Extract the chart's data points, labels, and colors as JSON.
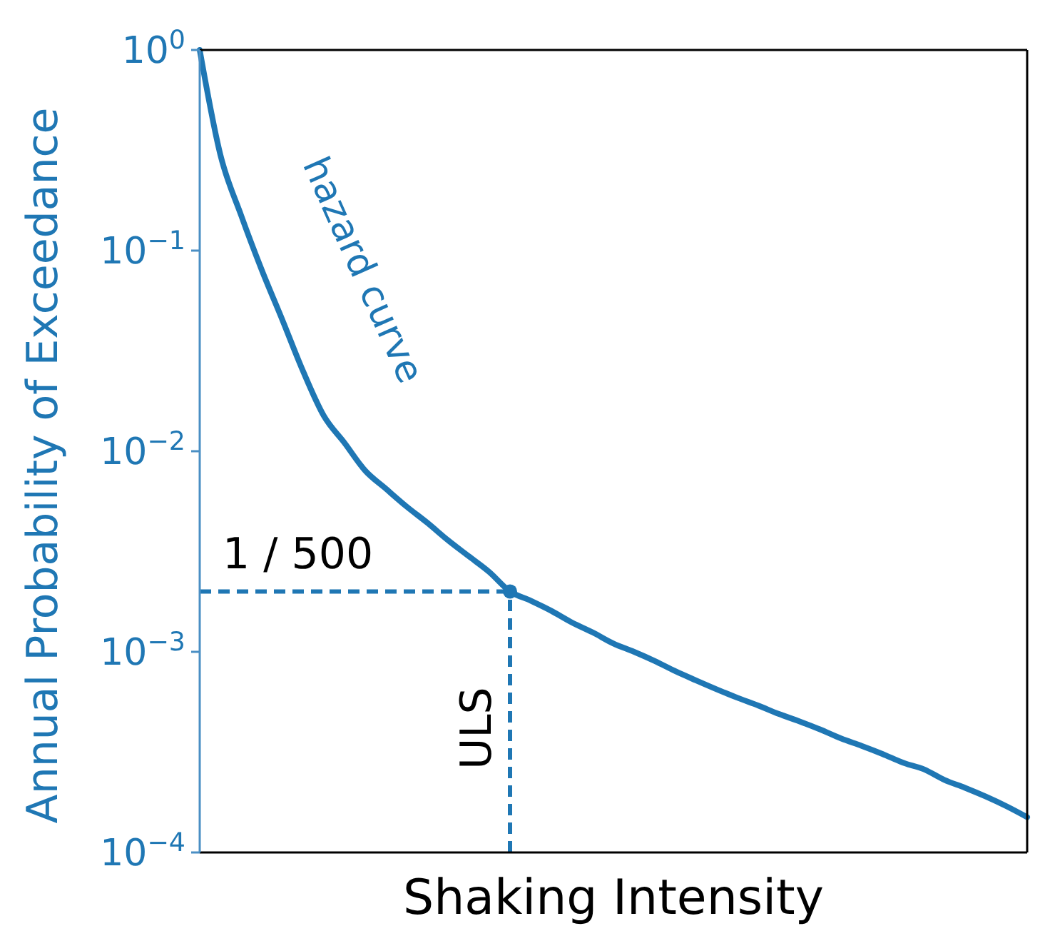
{
  "chart_data": {
    "type": "line",
    "xlabel": "Shaking Intensity",
    "ylabel": "Annual Probability of Exceedance",
    "categories": [
      null,
      null,
      null,
      null,
      null,
      null,
      null,
      null,
      null,
      null,
      null,
      null,
      null,
      null,
      null,
      null,
      null,
      null,
      null,
      null,
      null,
      null,
      null,
      null,
      null,
      null,
      null,
      null,
      null,
      null,
      null,
      null,
      null,
      null,
      null,
      null,
      null,
      null,
      null,
      null,
      null
    ],
    "series": [
      {
        "color": "#1f77b4",
        "values": [
          1.0,
          0.3,
          0.15,
          0.08,
          0.045,
          0.025,
          0.015,
          0.011,
          0.008,
          0.0065,
          0.0053,
          0.0044,
          0.0036,
          0.003,
          0.0025,
          0.002,
          0.0018,
          0.0016,
          0.0014,
          0.00125,
          0.0011,
          0.001,
          0.0009,
          0.0008,
          0.00072,
          0.00065,
          0.00059,
          0.00054,
          0.00049,
          0.00045,
          0.00041,
          0.00037,
          0.00034,
          0.00031,
          0.00028,
          0.00026,
          0.00023,
          0.00021,
          0.00019,
          0.00017,
          0.00015
        ]
      },
      {
        "type": "scatter",
        "marker": "circle",
        "color": "#1f77b4",
        "values": [
          null,
          null,
          null,
          null,
          null,
          null,
          null,
          null,
          null,
          null,
          null,
          null,
          null,
          null,
          null,
          0.002,
          null,
          null,
          null,
          null,
          null,
          null,
          null,
          null,
          null,
          null,
          null,
          null,
          null,
          null,
          null,
          null,
          null,
          null,
          null,
          null,
          null,
          null,
          null,
          null,
          null
        ]
      }
    ],
    "log": "y",
    "ylim": [
      0.0001,
      1
    ],
    "yticks": [
      {
        "value": 0.0001,
        "label": "10$^{−4}$"
      },
      {
        "value": 0.001,
        "label": "10$^{−3}$"
      },
      {
        "value": 0.01,
        "label": "10$^{−2}$"
      },
      {
        "value": 0.1,
        "label": "10$^{−1}$"
      },
      {
        "value": 1,
        "label": "10$^{0}$"
      }
    ],
    "ref_lines": [
      {
        "axis": "y",
        "value": 0.002,
        "color": "#1f77b4",
        "line_style": "dashed"
      }
    ],
    "annotations": [
      "hazard curve",
      "1 / 500",
      "ULS"
    ],
    "tick_labels": "y",
    "grid": false,
    "marker": "none",
    "line_style": "solid"
  }
}
